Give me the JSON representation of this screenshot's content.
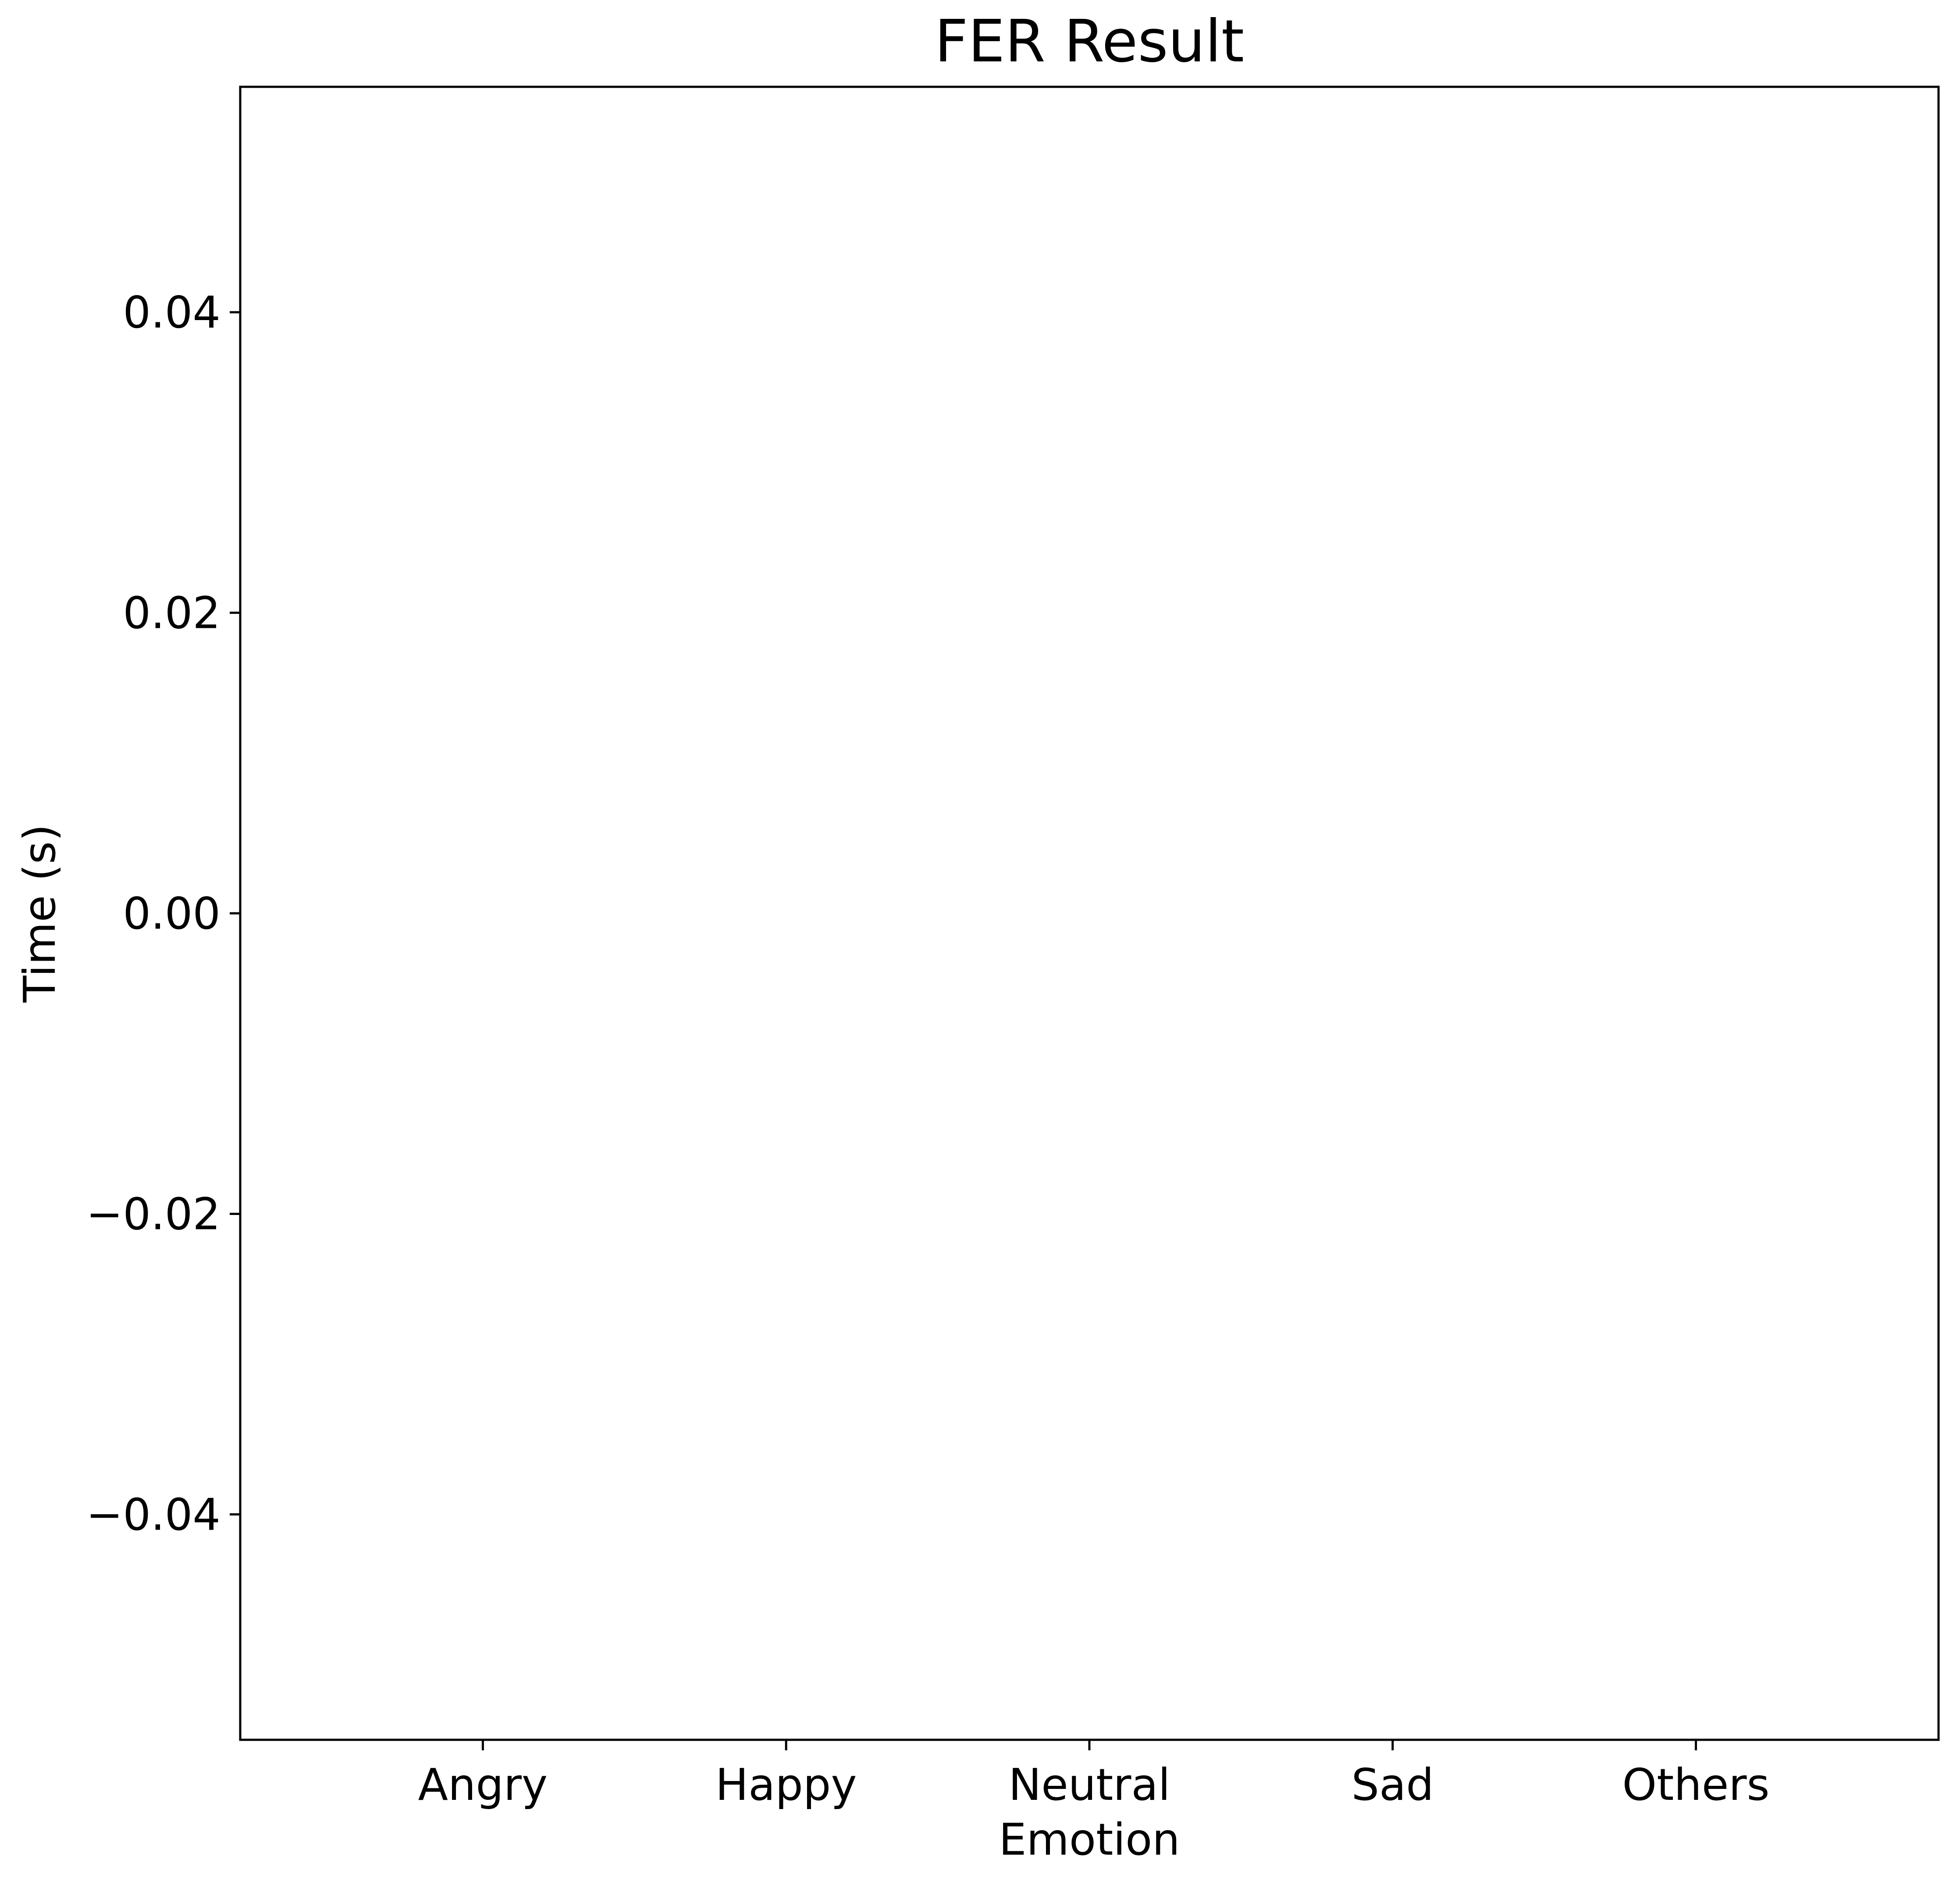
{
  "chart_data": {
    "type": "bar",
    "title": "FER Result",
    "xlabel": "Emotion",
    "ylabel": "Time (s)",
    "categories": [
      "Angry",
      "Happy",
      "Neutral",
      "Sad",
      "Others"
    ],
    "values": [
      0,
      0,
      0,
      0,
      0
    ],
    "ylim": [
      -0.055,
      0.055
    ],
    "yticks": [
      -0.04,
      -0.02,
      0.0,
      0.02,
      0.04
    ],
    "ytick_labels": [
      "−0.04",
      "−0.02",
      "0.00",
      "0.02",
      "0.04"
    ],
    "grid": false,
    "legend": "none",
    "colors": {
      "bar": "#1f77b4",
      "axis": "#000000",
      "background": "#ffffff"
    }
  }
}
